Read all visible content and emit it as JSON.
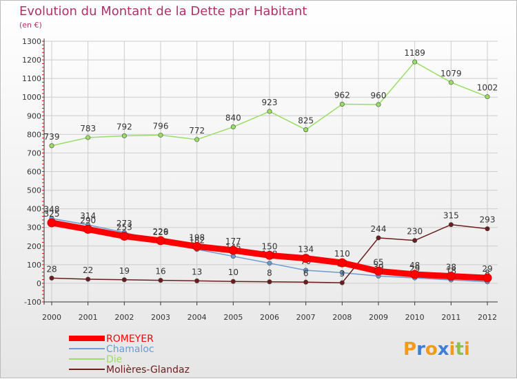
{
  "chart_data": {
    "type": "line",
    "title": "Evolution du Montant de la Dette par Habitant",
    "subtitle": "(en €)",
    "x": [
      "2000",
      "2001",
      "2002",
      "2003",
      "2004",
      "2005",
      "2006",
      "2007",
      "2008",
      "2009",
      "2010",
      "2011",
      "2012"
    ],
    "ylim": [
      -100,
      1300
    ],
    "yticks": [
      -100,
      0,
      100,
      200,
      300,
      400,
      500,
      600,
      700,
      800,
      900,
      1000,
      1100,
      1200,
      1300
    ],
    "grid": true,
    "legend_position": "bottom-left",
    "series": [
      {
        "name": "ROMEYER",
        "color": "#ff0000",
        "emphasis": true,
        "values": [
          325,
          290,
          253,
          229,
          198,
          177,
          150,
          134,
          110,
          65,
          48,
          38,
          29
        ],
        "labels": [
          "325",
          "290",
          "253",
          "229",
          "198",
          "177",
          "150",
          "134",
          "110",
          "65",
          "48",
          "38",
          "29"
        ]
      },
      {
        "name": "Chamaloc",
        "color": "#6b9bd2",
        "emphasis": false,
        "values": [
          348,
          314,
          273,
          226,
          182,
          145,
          108,
          70,
          57,
          39,
          29,
          18,
          8
        ],
        "labels": [
          "348",
          "314",
          "273",
          "226",
          "182",
          "145",
          "108",
          "70",
          "57",
          "39",
          "29",
          "18",
          "8"
        ]
      },
      {
        "name": "Die",
        "color": "#99dd66",
        "emphasis": false,
        "values": [
          739,
          783,
          792,
          796,
          772,
          840,
          923,
          825,
          962,
          960,
          1189,
          1079,
          1002
        ],
        "labels": [
          "739",
          "783",
          "792",
          "796",
          "772",
          "840",
          "923",
          "825",
          "962",
          "960",
          "1189",
          "1079",
          "1002"
        ]
      },
      {
        "name": "Molières-Glandaz",
        "color": "#6b1c1c",
        "emphasis": false,
        "values": [
          28,
          22,
          19,
          16,
          13,
          10,
          8,
          6,
          3,
          244,
          230,
          315,
          293
        ],
        "labels": [
          "28",
          "22",
          "19",
          "16",
          "13",
          "10",
          "8",
          "6",
          "3",
          "244",
          "230",
          "315",
          "293"
        ]
      }
    ]
  },
  "brand": {
    "letters": [
      "P",
      "r",
      "o",
      "x",
      "i",
      "t",
      "i"
    ],
    "colors": [
      "#f29a1a",
      "#3d7fd6",
      "#f29a1a",
      "#3d7fd6",
      "#f29a1a",
      "#8bc34a",
      "#f29a1a"
    ]
  },
  "colors": {
    "title": "#b0306a",
    "axis": "#333333",
    "grid": "#cccccc",
    "tick_red": "#ff0000",
    "background_top": "#ffffff",
    "background_bottom": "#e8e8e8"
  }
}
